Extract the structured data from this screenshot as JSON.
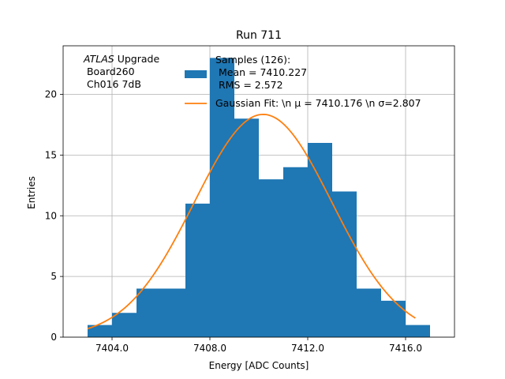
{
  "chart_data": {
    "type": "bar",
    "title": "Run 711",
    "xlabel": "Energy [ADC Counts]",
    "ylabel": "Entries",
    "xlim": [
      7402,
      7418
    ],
    "ylim": [
      0,
      24
    ],
    "grid": true,
    "legend_position": "top-right",
    "x_ticks": [
      7404,
      7408,
      7412,
      7416
    ],
    "x_tick_labels": [
      "7404.0",
      "7408.0",
      "7412.0",
      "7416.0"
    ],
    "y_ticks": [
      0,
      5,
      10,
      15,
      20
    ],
    "y_tick_labels": [
      "0",
      "5",
      "10",
      "15",
      "20"
    ],
    "bin_edges": [
      7403,
      7404,
      7405,
      7406,
      7407,
      7408,
      7409,
      7410,
      7411,
      7412,
      7413,
      7414,
      7415,
      7416,
      7417
    ],
    "counts": [
      1,
      2,
      4,
      4,
      11,
      23,
      18,
      13,
      14,
      16,
      12,
      4,
      3,
      1
    ],
    "histogram_color": "#1f77b4",
    "fit_color": "#ff7f0e",
    "fit": {
      "mu": 7410.176,
      "sigma": 2.807,
      "amplitude": 18.35,
      "x_range": [
        7403,
        7416.4
      ]
    },
    "annotation": {
      "italic": "ATLAS",
      "text": " Upgrade",
      "line2": " Board260",
      "line3": " Ch016 7dB"
    },
    "legend": {
      "histogram": {
        "line1": "Samples (126):",
        "line2": " Mean = 7410.227",
        "line3": " RMS = 2.572"
      },
      "fit": {
        "label": "Gaussian Fit: \\n μ = 7410.176 \\n σ=2.807"
      }
    }
  }
}
